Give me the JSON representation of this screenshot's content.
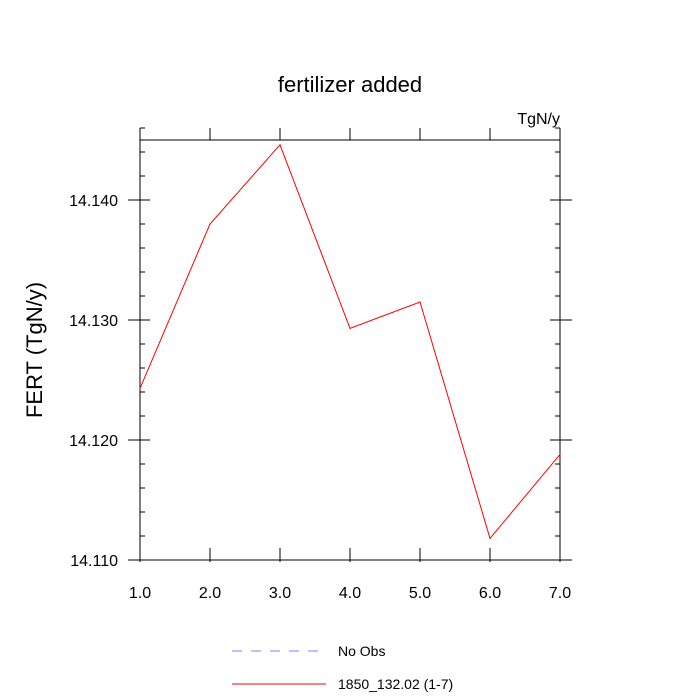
{
  "chart_data": {
    "type": "line",
    "title": "fertilizer added",
    "units_label": "TgN/y",
    "xlabel": "",
    "ylabel": "FERT  (TgN/y)",
    "xlim": [
      1.0,
      7.0
    ],
    "ylim": [
      14.11,
      14.145
    ],
    "x_ticks": [
      1.0,
      2.0,
      3.0,
      4.0,
      5.0,
      6.0,
      7.0
    ],
    "x_tick_labels": [
      "1.0",
      "2.0",
      "3.0",
      "4.0",
      "5.0",
      "6.0",
      "7.0"
    ],
    "y_ticks": [
      14.11,
      14.12,
      14.13,
      14.14
    ],
    "y_tick_labels": [
      "14.110",
      "14.120",
      "14.130",
      "14.140"
    ],
    "grid": false,
    "legend_position": "bottom",
    "series": [
      {
        "name": "1850_132.02 (1-7)",
        "color": "#ff0000",
        "dash": "solid",
        "x": [
          1,
          2,
          3,
          4,
          5,
          6,
          7
        ],
        "values": [
          14.1243,
          14.138,
          14.1446,
          14.1293,
          14.1315,
          14.1118,
          14.1188
        ]
      }
    ],
    "legend": [
      {
        "label": "No Obs",
        "color": "#8080ff",
        "dash": "dashed"
      },
      {
        "label": "1850_132.02 (1-7)",
        "color": "#ff0000",
        "dash": "solid"
      }
    ]
  }
}
